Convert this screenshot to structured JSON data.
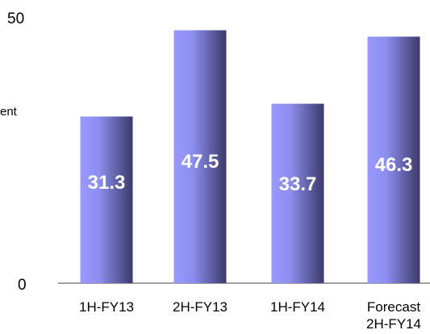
{
  "chart_data": {
    "type": "bar",
    "categories": [
      "1H-FY13",
      "2H-FY13",
      "1H-FY14",
      [
        "Forecast",
        "2H-FY14"
      ]
    ],
    "values": [
      31.3,
      47.5,
      33.7,
      46.3
    ],
    "data_labels": [
      "31.3",
      "47.5",
      "33.7",
      "46.3"
    ],
    "title": "",
    "xlabel": "",
    "ylabel": "",
    "ylim": [
      0,
      50
    ],
    "y_ticks": [
      "0",
      "50"
    ],
    "annotation": "ent",
    "grid": false,
    "colors": {
      "bar_light": "#9999ff",
      "bar_dark": "#3a3a6a",
      "axis": "#808080",
      "label_text": "#ffffff"
    }
  }
}
